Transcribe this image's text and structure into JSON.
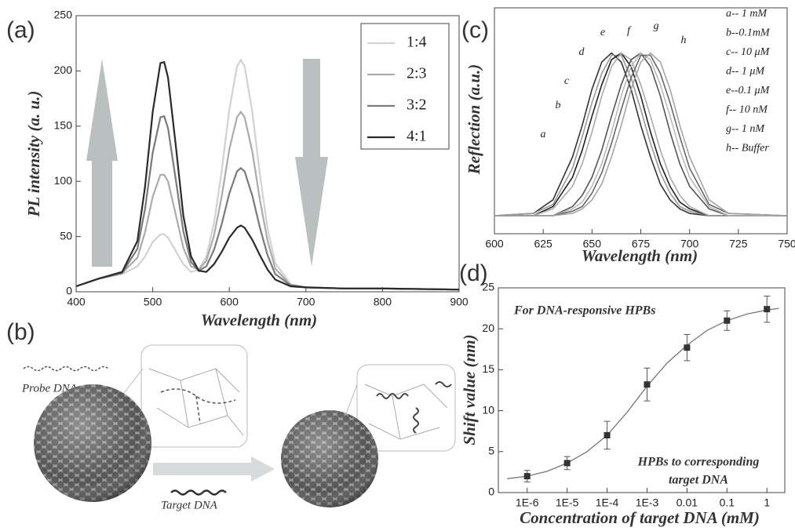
{
  "chart_data": [
    {
      "type": "line",
      "panel_label": "(a)",
      "x_label": "Wavelength (nm)",
      "y_label": "PL intensity (a. u.)",
      "x": [
        400,
        430,
        460,
        480,
        490,
        500,
        510,
        515,
        520,
        530,
        540,
        550,
        560,
        570,
        580,
        590,
        600,
        610,
        615,
        620,
        630,
        640,
        650,
        660,
        680,
        700,
        750,
        800,
        900
      ],
      "series": [
        {
          "name": "1:4",
          "color": "#d2d2d2",
          "values": [
            5,
            12,
            16,
            23,
            32,
            45,
            52,
            52,
            49,
            37,
            25,
            18,
            20,
            32,
            62,
            109,
            165,
            204,
            210,
            204,
            163,
            106,
            57,
            26,
            7,
            4,
            3,
            3,
            2
          ]
        },
        {
          "name": "2:3",
          "color": "#ababab",
          "values": [
            5,
            12,
            17,
            31,
            54,
            86,
            106,
            106,
            100,
            70,
            40,
            23,
            20,
            28,
            51,
            86,
            129,
            158,
            163,
            158,
            127,
            83,
            46,
            21,
            6,
            4,
            3,
            3,
            2
          ]
        },
        {
          "name": "3:2",
          "color": "#7a7a7a",
          "values": [
            5,
            12,
            17,
            39,
            75,
            126,
            158,
            159,
            148,
            102,
            55,
            27,
            19,
            23,
            38,
            61,
            89,
            109,
            112,
            109,
            87,
            58,
            33,
            16,
            6,
            4,
            3,
            3,
            2
          ]
        },
        {
          "name": "4:1",
          "color": "#2a2a2a",
          "values": [
            5,
            12,
            18,
            46,
            95,
            163,
            207,
            208,
            194,
            133,
            69,
            32,
            19,
            18,
            25,
            36,
            49,
            58,
            60,
            58,
            47,
            33,
            20,
            11,
            5,
            4,
            3,
            3,
            2
          ]
        }
      ],
      "xlim": [
        400,
        900
      ],
      "ylim": [
        0,
        250
      ],
      "xticks": [
        400,
        500,
        600,
        700,
        800,
        900
      ],
      "yticks": [
        0,
        50,
        100,
        150,
        200,
        250
      ],
      "legend": "upper right"
    },
    {
      "type": "line",
      "panel_label": "(c)",
      "x_label": "Wavelength (nm)",
      "y_label": "Reflection (a.u.)",
      "x": [
        600,
        620,
        630,
        640,
        645,
        650,
        655,
        660,
        665,
        670,
        675,
        680,
        685,
        690,
        695,
        700,
        710,
        720,
        750
      ],
      "curve_labels": [
        "a",
        "b",
        "c",
        "d",
        "e",
        "f",
        "g",
        "h"
      ],
      "series": [
        {
          "name": "a-- 1 mM",
          "color": "#333333",
          "values": [
            0.08,
            0.09,
            0.15,
            0.34,
            0.48,
            0.64,
            0.76,
            0.8,
            0.76,
            0.64,
            0.48,
            0.34,
            0.22,
            0.15,
            0.11,
            0.09,
            0.08,
            0.08,
            0.08
          ]
        },
        {
          "name": "b--0.1mM",
          "color": "#9a9a9a",
          "values": [
            0.08,
            0.09,
            0.13,
            0.29,
            0.43,
            0.58,
            0.71,
            0.79,
            0.79,
            0.69,
            0.55,
            0.4,
            0.27,
            0.18,
            0.12,
            0.1,
            0.08,
            0.08,
            0.08
          ]
        },
        {
          "name": "c-- 10 μM",
          "color": "#222222",
          "values": [
            0.08,
            0.08,
            0.12,
            0.25,
            0.37,
            0.52,
            0.66,
            0.77,
            0.8,
            0.74,
            0.61,
            0.45,
            0.31,
            0.21,
            0.14,
            0.11,
            0.08,
            0.08,
            0.08
          ]
        },
        {
          "name": "d-- 1 μM",
          "color": "#aaaaaa",
          "values": [
            0.08,
            0.08,
            0.11,
            0.21,
            0.31,
            0.45,
            0.61,
            0.74,
            0.8,
            0.77,
            0.66,
            0.52,
            0.37,
            0.25,
            0.17,
            0.12,
            0.08,
            0.08,
            0.08
          ]
        },
        {
          "name": "e--0.1 μM",
          "color": "#555555",
          "values": [
            0.08,
            0.08,
            0.08,
            0.12,
            0.17,
            0.25,
            0.37,
            0.52,
            0.66,
            0.77,
            0.8,
            0.74,
            0.61,
            0.45,
            0.31,
            0.21,
            0.11,
            0.08,
            0.08
          ]
        },
        {
          "name": "f-- 10 nM",
          "color": "#bbbbbb",
          "values": [
            0.08,
            0.08,
            0.08,
            0.11,
            0.14,
            0.21,
            0.31,
            0.45,
            0.61,
            0.74,
            0.8,
            0.77,
            0.66,
            0.52,
            0.37,
            0.25,
            0.12,
            0.08,
            0.08
          ]
        },
        {
          "name": "g-- 1 nM",
          "color": "#666666",
          "values": [
            0.08,
            0.08,
            0.08,
            0.1,
            0.12,
            0.18,
            0.27,
            0.4,
            0.55,
            0.69,
            0.79,
            0.79,
            0.71,
            0.58,
            0.43,
            0.29,
            0.13,
            0.09,
            0.08
          ]
        },
        {
          "name": "h-- Buffer",
          "color": "#a5a5a5",
          "values": [
            0.08,
            0.08,
            0.08,
            0.09,
            0.11,
            0.15,
            0.22,
            0.34,
            0.48,
            0.64,
            0.76,
            0.8,
            0.76,
            0.64,
            0.48,
            0.34,
            0.15,
            0.09,
            0.08
          ]
        }
      ],
      "xlim": [
        600,
        750
      ],
      "ylim": [
        0,
        1
      ],
      "xticks": [
        600,
        625,
        650,
        675,
        700,
        725,
        750
      ],
      "legend": "upper right"
    },
    {
      "type": "scatter",
      "panel_label": "(d)",
      "x_label": "Concentration of target DNA (mM)",
      "y_label": "Shift value (nm)",
      "annotations": [
        "For DNA-responsive HPBs",
        "HPBs to corresponding",
        "target DNA"
      ],
      "log_x": true,
      "x": [
        1e-06,
        1e-05,
        0.0001,
        0.001,
        0.01,
        0.1,
        1
      ],
      "series": [
        {
          "color": "#333333",
          "values": [
            2.0,
            3.6,
            7.0,
            13.2,
            17.7,
            21.0,
            22.4
          ],
          "errors": [
            0.7,
            0.8,
            1.7,
            2.0,
            1.6,
            1.2,
            1.6
          ]
        }
      ],
      "fit": {
        "color": "#777777",
        "x": [
          3.16e-07,
          1e-06,
          3.16e-06,
          1e-05,
          3.16e-05,
          0.0001,
          0.000316,
          0.001,
          0.00316,
          0.01,
          0.0316,
          0.1,
          0.316,
          1,
          2
        ],
        "values": [
          1.7,
          2.0,
          2.6,
          3.6,
          5.0,
          7.0,
          9.8,
          13.0,
          15.8,
          18.0,
          19.8,
          21.0,
          21.8,
          22.3,
          22.5
        ]
      },
      "xlim": [
        1.9e-07,
        2.8
      ],
      "ylim": [
        0,
        25
      ],
      "xticks": [
        {
          "value": 1e-06,
          "label": "1E-6"
        },
        {
          "value": 1e-05,
          "label": "1E-5"
        },
        {
          "value": 0.0001,
          "label": "1E-4"
        },
        {
          "value": 0.001,
          "label": "1E-3"
        },
        {
          "value": 0.01,
          "label": "0.01"
        },
        {
          "value": 0.1,
          "label": "0.1"
        },
        {
          "value": 1,
          "label": "1"
        }
      ],
      "yticks": [
        0,
        5,
        10,
        15,
        20,
        25
      ]
    }
  ],
  "diagram": {
    "panel_label": "(b)",
    "probe": "Probe DNA",
    "target": "Target DNA"
  }
}
